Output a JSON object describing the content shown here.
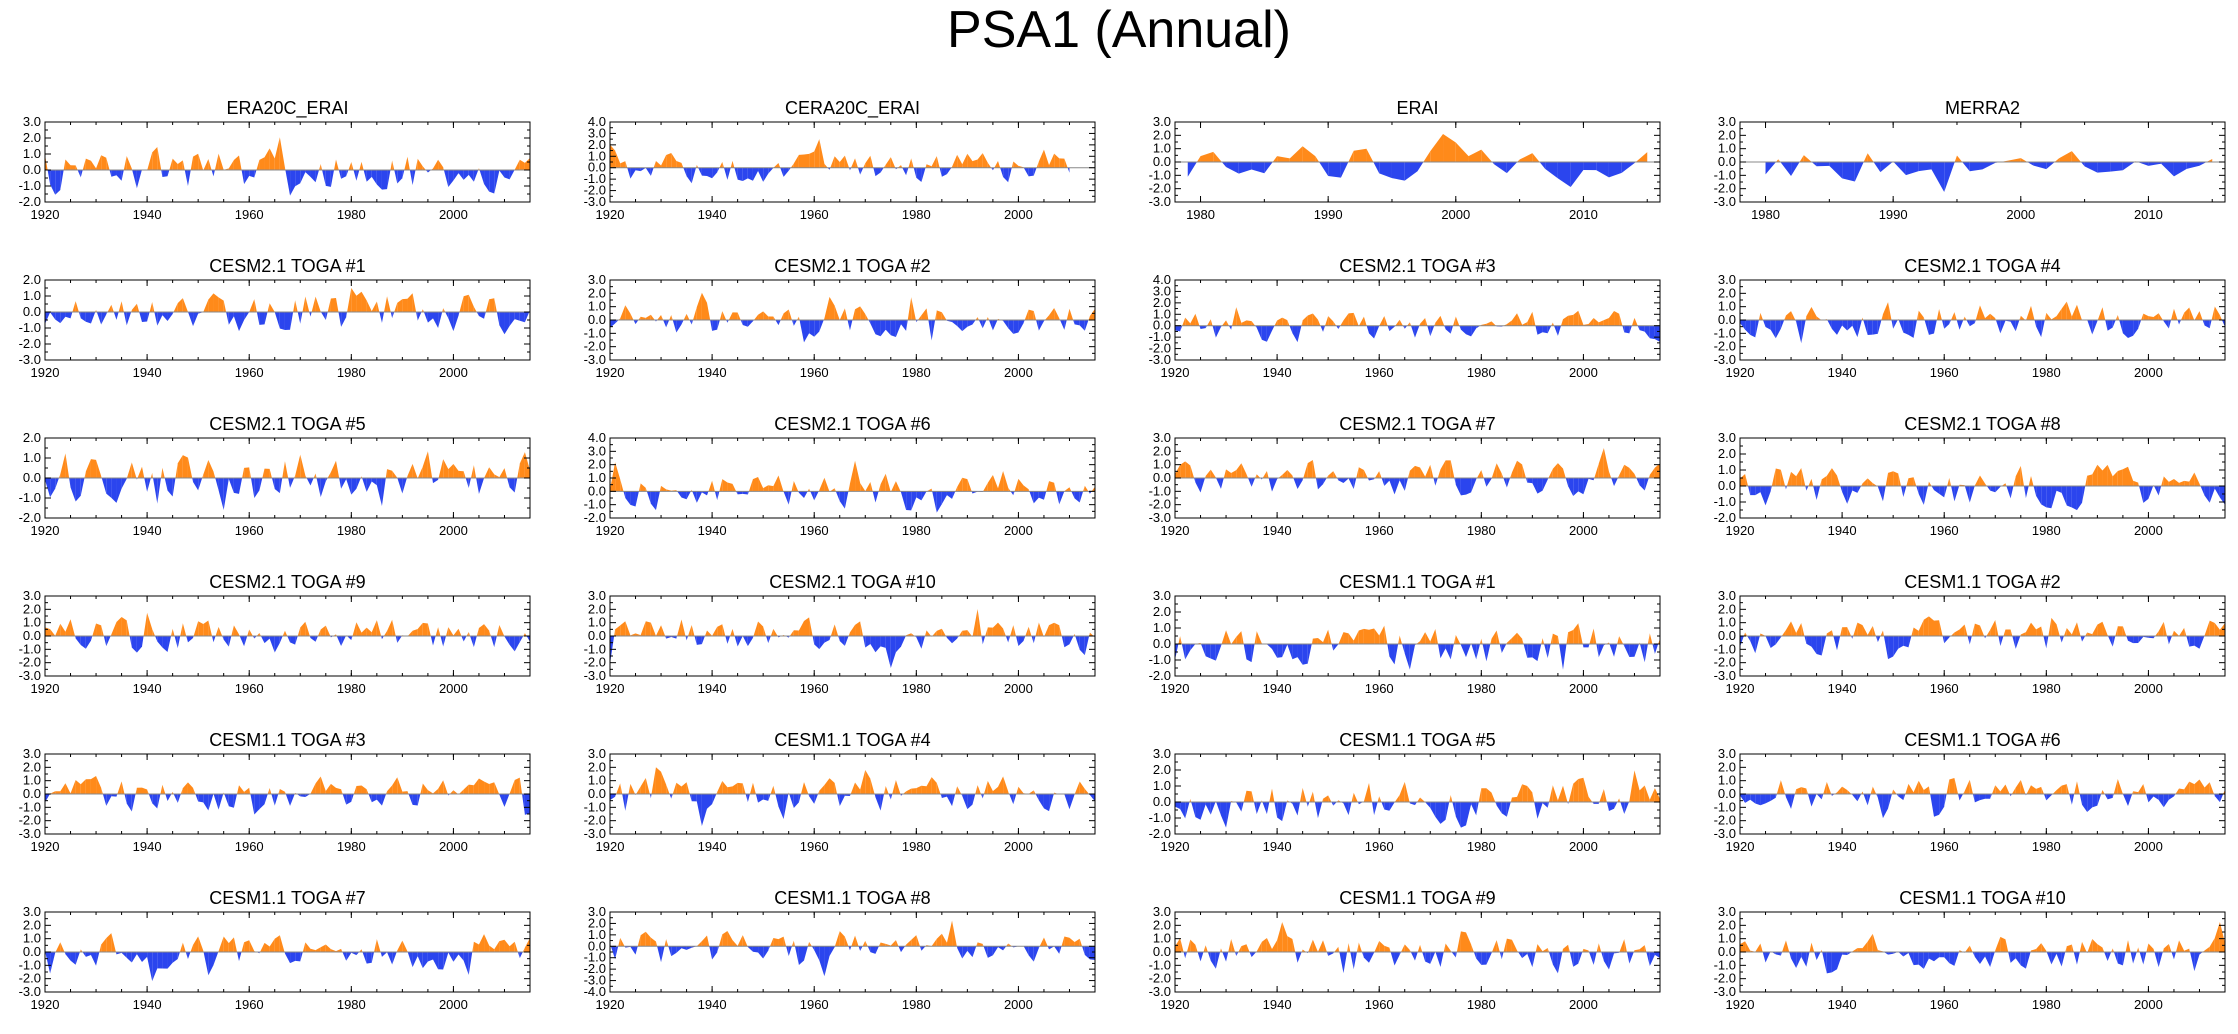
{
  "title": "PSA1 (Annual)",
  "colors": {
    "positive": "#FF8A1A",
    "negative": "#2B45EE",
    "axis": "#000000",
    "zero_line": "#888888"
  },
  "chart_data": [
    {
      "type": "area",
      "title": "ERA20C_ERAI",
      "x_start": 1920,
      "x_end": 2015,
      "xlim": [
        1920,
        2015
      ],
      "xticks": [
        1920,
        1940,
        1960,
        1980,
        2000
      ],
      "yticks": [
        "3.0",
        "2.0",
        "1.0",
        "0.0",
        "-1.0",
        "-2.0"
      ],
      "ylim": [
        -2,
        3
      ]
    },
    {
      "type": "area",
      "title": "CERA20C_ERAI",
      "x_start": 1920,
      "x_end": 2010,
      "xlim": [
        1920,
        2015
      ],
      "xticks": [
        1920,
        1940,
        1960,
        1980,
        2000
      ],
      "yticks": [
        "4.0",
        "3.0",
        "2.0",
        "1.0",
        "0.0",
        "-1.0",
        "-2.0",
        "-3.0"
      ],
      "ylim": [
        -3,
        4
      ]
    },
    {
      "type": "area",
      "title": "ERAI",
      "x_start": 1979,
      "x_end": 2015,
      "xlim": [
        1978,
        2016
      ],
      "xticks": [
        1980,
        1990,
        2000,
        2010
      ],
      "yticks": [
        "3.0",
        "2.0",
        "1.0",
        "0.0",
        "-1.0",
        "-2.0",
        "-3.0"
      ],
      "ylim": [
        -3,
        3
      ]
    },
    {
      "type": "area",
      "title": "MERRA2",
      "x_start": 1980,
      "x_end": 2015,
      "xlim": [
        1978,
        2016
      ],
      "xticks": [
        1980,
        1990,
        2000,
        2010
      ],
      "yticks": [
        "3.0",
        "2.0",
        "1.0",
        "0.0",
        "-1.0",
        "-2.0",
        "-3.0"
      ],
      "ylim": [
        -3,
        3
      ]
    },
    {
      "type": "area",
      "title": "CESM2.1 TOGA #1",
      "x_start": 1920,
      "x_end": 2015,
      "xlim": [
        1920,
        2015
      ],
      "xticks": [
        1920,
        1940,
        1960,
        1980,
        2000
      ],
      "yticks": [
        "2.0",
        "1.0",
        "0.0",
        "-1.0",
        "-2.0",
        "-3.0"
      ],
      "ylim": [
        -3,
        2
      ]
    },
    {
      "type": "area",
      "title": "CESM2.1 TOGA #2",
      "x_start": 1920,
      "x_end": 2015,
      "xlim": [
        1920,
        2015
      ],
      "xticks": [
        1920,
        1940,
        1960,
        1980,
        2000
      ],
      "yticks": [
        "3.0",
        "2.0",
        "1.0",
        "0.0",
        "-1.0",
        "-2.0",
        "-3.0"
      ],
      "ylim": [
        -3,
        3
      ]
    },
    {
      "type": "area",
      "title": "CESM2.1 TOGA #3",
      "x_start": 1920,
      "x_end": 2015,
      "xlim": [
        1920,
        2015
      ],
      "xticks": [
        1920,
        1940,
        1960,
        1980,
        2000
      ],
      "yticks": [
        "4.0",
        "3.0",
        "2.0",
        "1.0",
        "0.0",
        "-1.0",
        "-2.0",
        "-3.0"
      ],
      "ylim": [
        -3,
        4
      ]
    },
    {
      "type": "area",
      "title": "CESM2.1 TOGA #4",
      "x_start": 1920,
      "x_end": 2015,
      "xlim": [
        1920,
        2015
      ],
      "xticks": [
        1920,
        1940,
        1960,
        1980,
        2000
      ],
      "yticks": [
        "3.0",
        "2.0",
        "1.0",
        "0.0",
        "-1.0",
        "-2.0",
        "-3.0"
      ],
      "ylim": [
        -3,
        3
      ]
    },
    {
      "type": "area",
      "title": "CESM2.1 TOGA #5",
      "x_start": 1920,
      "x_end": 2015,
      "xlim": [
        1920,
        2015
      ],
      "xticks": [
        1920,
        1940,
        1960,
        1980,
        2000
      ],
      "yticks": [
        "2.0",
        "1.0",
        "0.0",
        "-1.0",
        "-2.0"
      ],
      "ylim": [
        -2,
        2
      ]
    },
    {
      "type": "area",
      "title": "CESM2.1 TOGA #6",
      "x_start": 1920,
      "x_end": 2015,
      "xlim": [
        1920,
        2015
      ],
      "xticks": [
        1920,
        1940,
        1960,
        1980,
        2000
      ],
      "yticks": [
        "4.0",
        "3.0",
        "2.0",
        "1.0",
        "0.0",
        "-1.0",
        "-2.0"
      ],
      "ylim": [
        -2,
        4
      ]
    },
    {
      "type": "area",
      "title": "CESM2.1 TOGA #7",
      "x_start": 1920,
      "x_end": 2015,
      "xlim": [
        1920,
        2015
      ],
      "xticks": [
        1920,
        1940,
        1960,
        1980,
        2000
      ],
      "yticks": [
        "3.0",
        "2.0",
        "1.0",
        "0.0",
        "-1.0",
        "-2.0",
        "-3.0"
      ],
      "ylim": [
        -3,
        3
      ]
    },
    {
      "type": "area",
      "title": "CESM2.1 TOGA #8",
      "x_start": 1920,
      "x_end": 2015,
      "xlim": [
        1920,
        2015
      ],
      "xticks": [
        1920,
        1940,
        1960,
        1980,
        2000
      ],
      "yticks": [
        "3.0",
        "2.0",
        "1.0",
        "0.0",
        "-1.0",
        "-2.0"
      ],
      "ylim": [
        -2,
        3
      ]
    },
    {
      "type": "area",
      "title": "CESM2.1 TOGA #9",
      "x_start": 1920,
      "x_end": 2015,
      "xlim": [
        1920,
        2015
      ],
      "xticks": [
        1920,
        1940,
        1960,
        1980,
        2000
      ],
      "yticks": [
        "3.0",
        "2.0",
        "1.0",
        "0.0",
        "-1.0",
        "-2.0",
        "-3.0"
      ],
      "ylim": [
        -3,
        3
      ]
    },
    {
      "type": "area",
      "title": "CESM2.1 TOGA #10",
      "x_start": 1920,
      "x_end": 2015,
      "xlim": [
        1920,
        2015
      ],
      "xticks": [
        1920,
        1940,
        1960,
        1980,
        2000
      ],
      "yticks": [
        "3.0",
        "2.0",
        "1.0",
        "0.0",
        "-1.0",
        "-2.0",
        "-3.0"
      ],
      "ylim": [
        -3,
        3
      ]
    },
    {
      "type": "area",
      "title": "CESM1.1 TOGA #1",
      "x_start": 1920,
      "x_end": 2015,
      "xlim": [
        1920,
        2015
      ],
      "xticks": [
        1920,
        1940,
        1960,
        1980,
        2000
      ],
      "yticks": [
        "3.0",
        "2.0",
        "1.0",
        "0.0",
        "-1.0",
        "-2.0"
      ],
      "ylim": [
        -2,
        3
      ]
    },
    {
      "type": "area",
      "title": "CESM1.1 TOGA #2",
      "x_start": 1920,
      "x_end": 2015,
      "xlim": [
        1920,
        2015
      ],
      "xticks": [
        1920,
        1940,
        1960,
        1980,
        2000
      ],
      "yticks": [
        "3.0",
        "2.0",
        "1.0",
        "0.0",
        "-1.0",
        "-2.0",
        "-3.0"
      ],
      "ylim": [
        -3,
        3
      ]
    },
    {
      "type": "area",
      "title": "CESM1.1 TOGA #3",
      "x_start": 1920,
      "x_end": 2015,
      "xlim": [
        1920,
        2015
      ],
      "xticks": [
        1920,
        1940,
        1960,
        1980,
        2000
      ],
      "yticks": [
        "3.0",
        "2.0",
        "1.0",
        "0.0",
        "-1.0",
        "-2.0",
        "-3.0"
      ],
      "ylim": [
        -3,
        3
      ]
    },
    {
      "type": "area",
      "title": "CESM1.1 TOGA #4",
      "x_start": 1920,
      "x_end": 2015,
      "xlim": [
        1920,
        2015
      ],
      "xticks": [
        1920,
        1940,
        1960,
        1980,
        2000
      ],
      "yticks": [
        "3.0",
        "2.0",
        "1.0",
        "0.0",
        "-1.0",
        "-2.0",
        "-3.0"
      ],
      "ylim": [
        -3,
        3
      ]
    },
    {
      "type": "area",
      "title": "CESM1.1 TOGA #5",
      "x_start": 1920,
      "x_end": 2015,
      "xlim": [
        1920,
        2015
      ],
      "xticks": [
        1920,
        1940,
        1960,
        1980,
        2000
      ],
      "yticks": [
        "3.0",
        "2.0",
        "1.0",
        "0.0",
        "-1.0",
        "-2.0"
      ],
      "ylim": [
        -2,
        3
      ]
    },
    {
      "type": "area",
      "title": "CESM1.1 TOGA #6",
      "x_start": 1920,
      "x_end": 2015,
      "xlim": [
        1920,
        2015
      ],
      "xticks": [
        1920,
        1940,
        1960,
        1980,
        2000
      ],
      "yticks": [
        "3.0",
        "2.0",
        "1.0",
        "0.0",
        "-1.0",
        "-2.0",
        "-3.0"
      ],
      "ylim": [
        -3,
        3
      ]
    },
    {
      "type": "area",
      "title": "CESM1.1 TOGA #7",
      "x_start": 1920,
      "x_end": 2015,
      "xlim": [
        1920,
        2015
      ],
      "xticks": [
        1920,
        1940,
        1960,
        1980,
        2000
      ],
      "yticks": [
        "3.0",
        "2.0",
        "1.0",
        "0.0",
        "-1.0",
        "-2.0",
        "-3.0"
      ],
      "ylim": [
        -3,
        3
      ]
    },
    {
      "type": "area",
      "title": "CESM1.1 TOGA #8",
      "x_start": 1920,
      "x_end": 2015,
      "xlim": [
        1920,
        2015
      ],
      "xticks": [
        1920,
        1940,
        1960,
        1980,
        2000
      ],
      "yticks": [
        "3.0",
        "2.0",
        "1.0",
        "0.0",
        "-1.0",
        "-2.0",
        "-3.0",
        "-4.0"
      ],
      "ylim": [
        -4,
        3
      ]
    },
    {
      "type": "area",
      "title": "CESM1.1 TOGA #9",
      "x_start": 1920,
      "x_end": 2015,
      "xlim": [
        1920,
        2015
      ],
      "xticks": [
        1920,
        1940,
        1960,
        1980,
        2000
      ],
      "yticks": [
        "3.0",
        "2.0",
        "1.0",
        "0.0",
        "-1.0",
        "-2.0",
        "-3.0"
      ],
      "ylim": [
        -3,
        3
      ]
    },
    {
      "type": "area",
      "title": "CESM1.1 TOGA #10",
      "x_start": 1920,
      "x_end": 2015,
      "xlim": [
        1920,
        2015
      ],
      "xticks": [
        1920,
        1940,
        1960,
        1980,
        2000
      ],
      "yticks": [
        "3.0",
        "2.0",
        "1.0",
        "0.0",
        "-1.0",
        "-2.0",
        "-3.0"
      ],
      "ylim": [
        -3,
        3
      ]
    }
  ]
}
